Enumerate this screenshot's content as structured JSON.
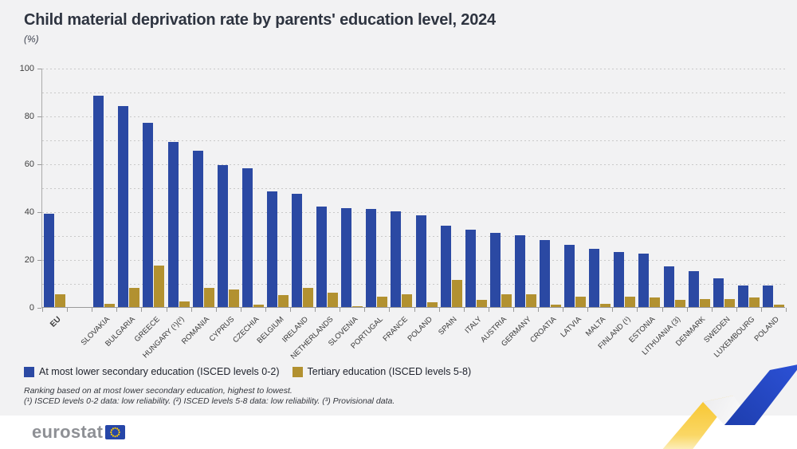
{
  "header": {
    "title": "Child material deprivation rate by parents' education level, 2024",
    "subtitle": "(%)"
  },
  "chart_data": {
    "type": "bar",
    "title": "Child material deprivation rate by parents' education level, 2024",
    "unit": "(%)",
    "ylim": [
      0,
      100
    ],
    "yticks": [
      0,
      20,
      40,
      60,
      80,
      100
    ],
    "grid_step": 10,
    "grid": "dashed horizontal",
    "legend_position": "bottom-left",
    "ranking": "highest to lowest by ISCED 0-2",
    "categories": [
      "EU",
      "SLOVAKIA",
      "BULGARIA",
      "GREECE",
      "HUNGARY (¹)(²)",
      "ROMANIA",
      "CYPRUS",
      "CZECHIA",
      "BELGIUM",
      "IRELAND",
      "NETHERLANDS",
      "SLOVENIA",
      "PORTUGAL",
      "FRANCE",
      "POLAND",
      "SPAIN",
      "ITALY",
      "AUSTRIA",
      "GERMANY",
      "CROATIA",
      "LATVIA",
      "MALTA",
      "FINLAND (¹)",
      "ESTONIA",
      "LITHUANIA (3)",
      "DENMARK",
      "SWEDEN",
      "LUXEMBOURG",
      "POLAND"
    ],
    "series": [
      {
        "id": "isced-0-2",
        "name": "At most lower secondary education (ISCED levels 0-2)",
        "color": "#2B49A3",
        "values": [
          39,
          88.5,
          84,
          77,
          69,
          65.5,
          59.5,
          58,
          48.5,
          47.5,
          42,
          41.5,
          41,
          40,
          38.5,
          34,
          32.5,
          31,
          30,
          28,
          26,
          24.5,
          23,
          22.5,
          17,
          15,
          12,
          9,
          9
        ]
      },
      {
        "id": "isced-5-8",
        "name": "Tertiary education (ISCED levels 5-8)",
        "color": "#B29130",
        "values": [
          5.5,
          1.5,
          8,
          17.5,
          2.5,
          8,
          7.5,
          1,
          5,
          8,
          6,
          0.5,
          4.5,
          5.5,
          2,
          11.5,
          3,
          5.5,
          5.5,
          1,
          4.5,
          1.5,
          4.5,
          4,
          3,
          3.5,
          3.5,
          4,
          1
        ]
      }
    ]
  },
  "footnotes": {
    "ranking_note": "Ranking based on at most lower secondary education, highest to lowest.",
    "reliability_note": "(¹) ISCED levels 0-2 data: low reliability. (²) ISCED levels 5-8 data: low reliability. (³) Provisional data."
  },
  "footer": {
    "logo_text": "eurostat"
  },
  "colors": {
    "background": "#F2F2F3",
    "bar_low_education": "#2B49A3",
    "bar_tertiary_education": "#B29130",
    "title_text": "#2E3440",
    "footer_background": "#FFFFFF",
    "ribbon_yellow": "#F7C52D",
    "ribbon_blue": "#2B50D4",
    "eu_flag_blue": "#2646A8",
    "eu_flag_stars": "#FFCC00"
  }
}
